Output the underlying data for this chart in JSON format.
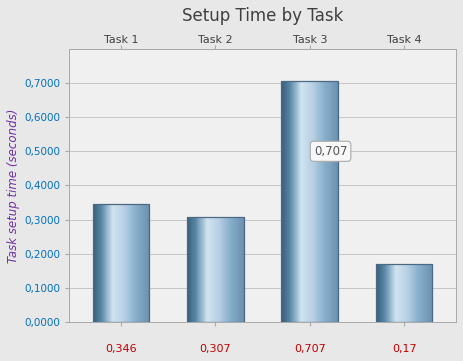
{
  "title": "Setup Time by Task",
  "tasks": [
    "Task 1",
    "Task 2",
    "Task 3",
    "Task 4"
  ],
  "values": [
    0.346,
    0.307,
    0.707,
    0.17
  ],
  "value_labels": [
    "0,346",
    "0,307",
    "0,707",
    "0,17"
  ],
  "ylabel": "Task setup time (seconds)",
  "ylim": [
    0,
    0.8
  ],
  "yticks": [
    0.0,
    0.1,
    0.2,
    0.3,
    0.4,
    0.5,
    0.6,
    0.7
  ],
  "ytick_labels": [
    "0,0000",
    "0,1000",
    "0,2000",
    "0,3000",
    "0,4000",
    "0,5000",
    "0,6000",
    "0,7000"
  ],
  "background_color": "#e8e8e8",
  "plot_bg_color": "#f0f0f0",
  "title_color": "#404040",
  "ylabel_color": "#7030a0",
  "tick_label_color": "#0070c0",
  "top_task_color": "#404040",
  "top_value_color": "#c00000",
  "annotation_text": "0,707",
  "annotation_bar_index": 2,
  "grid_color": "#c0c0c0",
  "bar_width": 0.6,
  "bar_gradient_left": "#3a5f7a",
  "bar_gradient_mid": "#c8dcea",
  "bar_gradient_right": "#8aafc8"
}
